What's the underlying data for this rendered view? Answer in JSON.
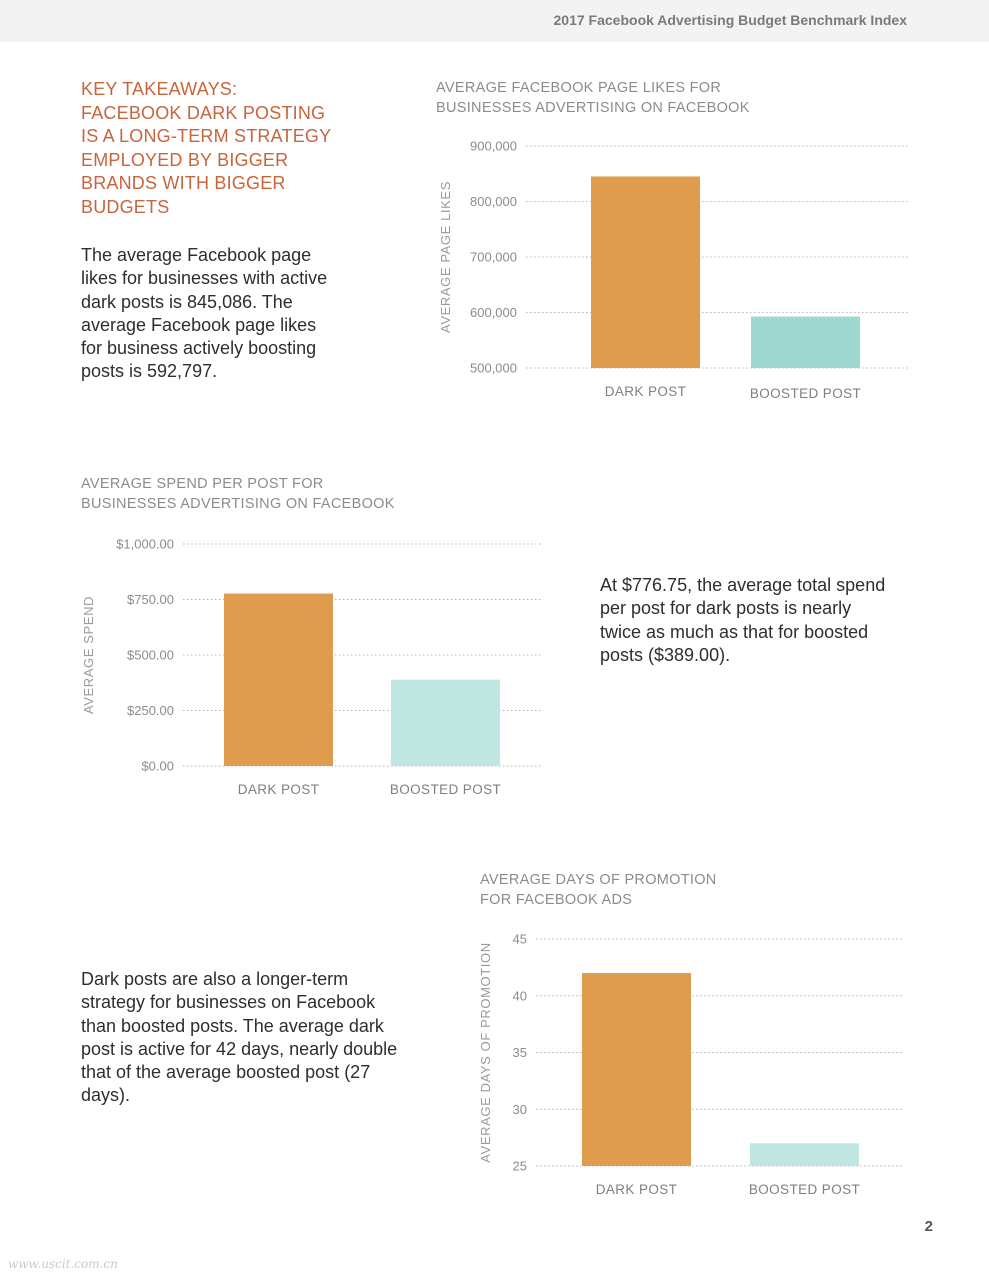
{
  "header": {
    "title": "2017 Facebook Advertising Budget Benchmark Index"
  },
  "takeaway": {
    "title_lines": [
      "KEY TAKEAWAYS:",
      "FACEBOOK DARK POSTING",
      "IS A LONG-TERM STRATEGY",
      "EMPLOYED BY BIGGER",
      "BRANDS WITH BIGGER",
      "BUDGETS"
    ]
  },
  "paragraphs": {
    "likes": [
      "The average Facebook page",
      "likes for businesses with active",
      "dark posts is 845,086. The",
      "average Facebook page likes",
      "for business actively boosting",
      "posts is 592,797."
    ],
    "spend": [
      "At $776.75, the average total spend",
      "per post for dark posts is nearly",
      "twice as much as that for boosted",
      "posts ($389.00)."
    ],
    "days": [
      "Dark posts are also a longer-term",
      "strategy for businesses on Facebook",
      "than boosted posts. The average dark",
      "post is active for 42 days, nearly double",
      "that of the average boosted post (27",
      "days)."
    ]
  },
  "colors": {
    "dark_post": "#df9b4e",
    "boosted_post": "#9ed8cf",
    "boosted_post_light": "#bfe6e0",
    "title_accent": "#c7653d"
  },
  "chart_data": [
    {
      "type": "bar",
      "title_lines": [
        "AVERAGE FACEBOOK PAGE LIKES FOR",
        "BUSINESSES ADVERTISING ON FACEBOOK"
      ],
      "ylabel": "AVERAGE PAGE LIKES",
      "categories": [
        "DARK POST",
        "BOOSTED POST"
      ],
      "values": [
        845086,
        592797
      ],
      "ylim": [
        500000,
        900000
      ],
      "yticks": [
        500000,
        600000,
        700000,
        800000,
        900000
      ],
      "ytick_labels": [
        "500,000",
        "600,000",
        "700,000",
        "800,000",
        "900,000"
      ],
      "grid": true
    },
    {
      "type": "bar",
      "title_lines": [
        "AVERAGE SPEND PER POST FOR",
        "BUSINESSES ADVERTISING ON FACEBOOK"
      ],
      "ylabel": "AVERAGE SPEND",
      "categories": [
        "DARK POST",
        "BOOSTED POST"
      ],
      "values": [
        776.75,
        389.0
      ],
      "ylim": [
        0,
        1000
      ],
      "yticks": [
        0,
        250,
        500,
        750,
        1000
      ],
      "ytick_labels": [
        "$0.00",
        "$250.00",
        "$500.00",
        "$750.00",
        "$1,000.00"
      ],
      "grid": true
    },
    {
      "type": "bar",
      "title_lines": [
        "AVERAGE DAYS OF PROMOTION",
        "FOR FACEBOOK ADS"
      ],
      "ylabel": "AVERAGE DAYS OF PROMOTION",
      "categories": [
        "DARK POST",
        "BOOSTED POST"
      ],
      "values": [
        42,
        27
      ],
      "ylim": [
        25,
        45
      ],
      "yticks": [
        25,
        30,
        35,
        40,
        45
      ],
      "ytick_labels": [
        "25",
        "30",
        "35",
        "40",
        "45"
      ],
      "grid": true
    }
  ],
  "page_number": "2",
  "watermark": "www.uscit.com.cn"
}
